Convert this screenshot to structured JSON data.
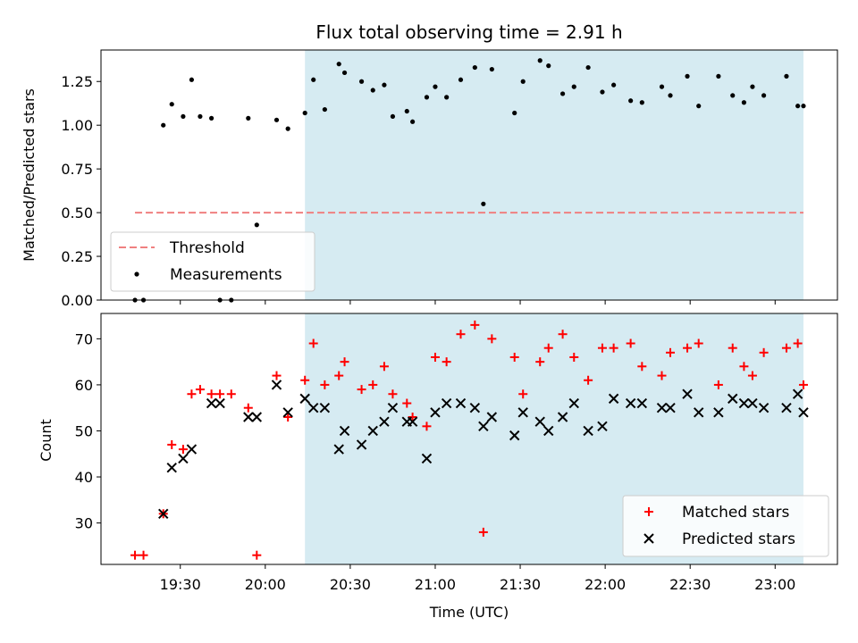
{
  "chart_data": [
    {
      "type": "scatter",
      "title": "Flux total observing time = 2.91 h",
      "xlabel": "",
      "ylabel": "Matched/Predicted stars",
      "xlim": [
        "19:02",
        "23:22"
      ],
      "ylim": [
        0,
        1.43
      ],
      "yticks": [
        "0.00",
        "0.25",
        "0.50",
        "0.75",
        "1.00",
        "1.25"
      ],
      "shaded_span": [
        "20:14",
        "23:10"
      ],
      "shaded_color": "#add8e6",
      "threshold": {
        "name": "Threshold",
        "value": 0.5,
        "x_range": [
          "19:14",
          "23:10"
        ],
        "color": "#f08080"
      },
      "series": [
        {
          "name": "Measurements",
          "color": "#000000",
          "x": [
            "19:14",
            "19:17",
            "19:24",
            "19:27",
            "19:31",
            "19:34",
            "19:37",
            "19:41",
            "19:44",
            "19:48",
            "19:54",
            "19:57",
            "20:04",
            "20:08",
            "20:14",
            "20:17",
            "20:21",
            "20:26",
            "20:28",
            "20:34",
            "20:38",
            "20:42",
            "20:45",
            "20:50",
            "20:52",
            "20:57",
            "21:00",
            "21:04",
            "21:09",
            "21:14",
            "21:17",
            "21:20",
            "21:28",
            "21:31",
            "21:37",
            "21:40",
            "21:45",
            "21:49",
            "21:54",
            "21:59",
            "22:03",
            "22:09",
            "22:13",
            "22:20",
            "22:23",
            "22:29",
            "22:33",
            "22:40",
            "22:45",
            "22:49",
            "22:52",
            "22:56",
            "23:04",
            "23:08",
            "23:10"
          ],
          "y": [
            0.0,
            0.0,
            1.0,
            1.12,
            1.05,
            1.26,
            1.05,
            1.04,
            0.0,
            0.0,
            1.04,
            0.43,
            1.03,
            0.98,
            1.07,
            1.26,
            1.09,
            1.35,
            1.3,
            1.25,
            1.2,
            1.23,
            1.05,
            1.08,
            1.02,
            1.16,
            1.22,
            1.16,
            1.26,
            1.33,
            0.55,
            1.32,
            1.07,
            1.25,
            1.37,
            1.34,
            1.18,
            1.22,
            1.33,
            1.19,
            1.23,
            1.14,
            1.13,
            1.22,
            1.17,
            1.28,
            1.11,
            1.28,
            1.17,
            1.13,
            1.22,
            1.17,
            1.28,
            1.11,
            1.11
          ]
        }
      ],
      "legend": {
        "position": "lower-left",
        "entries": [
          "Threshold",
          "Measurements"
        ]
      }
    },
    {
      "type": "scatter",
      "title": "",
      "xlabel": "Time (UTC)",
      "ylabel": "Count",
      "xlim": [
        "19:02",
        "23:22"
      ],
      "ylim": [
        21,
        75.5
      ],
      "yticks": [
        "30",
        "40",
        "50",
        "60",
        "70"
      ],
      "xticks": [
        "19:30",
        "20:00",
        "20:30",
        "21:00",
        "21:30",
        "22:00",
        "22:30",
        "23:00"
      ],
      "shaded_span": [
        "20:14",
        "23:10"
      ],
      "shaded_color": "#add8e6",
      "series": [
        {
          "name": "Matched stars",
          "marker": "+",
          "color": "#ff0000",
          "x": [
            "19:14",
            "19:17",
            "19:24",
            "19:27",
            "19:31",
            "19:34",
            "19:37",
            "19:41",
            "19:44",
            "19:48",
            "19:54",
            "19:57",
            "20:04",
            "20:08",
            "20:14",
            "20:17",
            "20:21",
            "20:26",
            "20:28",
            "20:34",
            "20:38",
            "20:42",
            "20:45",
            "20:50",
            "20:52",
            "20:57",
            "21:00",
            "21:04",
            "21:09",
            "21:14",
            "21:17",
            "21:20",
            "21:28",
            "21:31",
            "21:37",
            "21:40",
            "21:45",
            "21:49",
            "21:54",
            "21:59",
            "22:03",
            "22:09",
            "22:13",
            "22:20",
            "22:23",
            "22:29",
            "22:33",
            "22:40",
            "22:45",
            "22:49",
            "22:52",
            "22:56",
            "23:04",
            "23:08",
            "23:10"
          ],
          "y": [
            23,
            23,
            32,
            47,
            46,
            58,
            59,
            58,
            58,
            58,
            55,
            23,
            62,
            53,
            61,
            69,
            60,
            62,
            65,
            59,
            60,
            64,
            58,
            56,
            53,
            51,
            66,
            65,
            71,
            73,
            28,
            70,
            66,
            58,
            65,
            68,
            71,
            66,
            61,
            68,
            68,
            69,
            64,
            62,
            67,
            68,
            69,
            60,
            68,
            64,
            62,
            67,
            68,
            69,
            60
          ]
        },
        {
          "name": "Predicted stars",
          "marker": "x",
          "color": "#000000",
          "x": [
            "19:24",
            "19:27",
            "19:31",
            "19:34",
            "19:41",
            "19:44",
            "19:54",
            "19:57",
            "20:04",
            "20:08",
            "20:14",
            "20:17",
            "20:21",
            "20:26",
            "20:28",
            "20:34",
            "20:38",
            "20:42",
            "20:45",
            "20:50",
            "20:52",
            "20:57",
            "21:00",
            "21:04",
            "21:09",
            "21:14",
            "21:17",
            "21:20",
            "21:28",
            "21:31",
            "21:37",
            "21:40",
            "21:45",
            "21:49",
            "21:54",
            "21:59",
            "22:03",
            "22:09",
            "22:13",
            "22:20",
            "22:23",
            "22:29",
            "22:33",
            "22:40",
            "22:45",
            "22:49",
            "22:52",
            "22:56",
            "23:04",
            "23:08",
            "23:10"
          ],
          "y": [
            32,
            42,
            44,
            46,
            56,
            56,
            53,
            53,
            60,
            54,
            57,
            55,
            55,
            46,
            50,
            47,
            50,
            52,
            55,
            52,
            52,
            44,
            54,
            56,
            56,
            55,
            51,
            53,
            49,
            54,
            52,
            50,
            53,
            56,
            50,
            51,
            57,
            56,
            56,
            55,
            55,
            58,
            54,
            54,
            57,
            56,
            56,
            55,
            55,
            58,
            54
          ]
        }
      ],
      "legend": {
        "position": "lower-right",
        "entries": [
          "Matched stars",
          "Predicted stars"
        ]
      }
    }
  ]
}
